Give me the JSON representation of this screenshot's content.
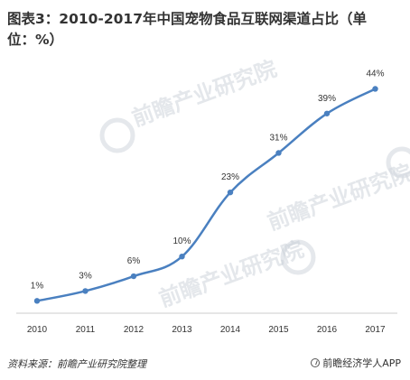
{
  "title": "图表3：2010-2017年中国宠物食品互联网渠道占比（单位：%）",
  "source": "资料来源：前瞻产业研究院整理",
  "brand": "前瞻经济学人APP",
  "watermark": "前瞻产业研究院",
  "colors": {
    "line": "#4a80c0",
    "point": "#4a80c0",
    "axis": "#cccccc"
  },
  "chart_data": {
    "type": "line",
    "title": "图表3：2010-2017年中国宠物食品互联网渠道占比（单位：%）",
    "categories": [
      "2010",
      "2011",
      "2012",
      "2013",
      "2014",
      "2015",
      "2016",
      "2017"
    ],
    "series": [
      {
        "values": [
          1,
          3,
          6,
          10,
          23,
          31,
          39,
          44
        ],
        "labels": [
          "1%",
          "3%",
          "6%",
          "10%",
          "23%",
          "31%",
          "39%",
          "44%"
        ]
      }
    ],
    "xlabel": "",
    "ylabel": "",
    "ylim": [
      -1.5,
      45
    ],
    "grid": false,
    "legend": "none"
  }
}
